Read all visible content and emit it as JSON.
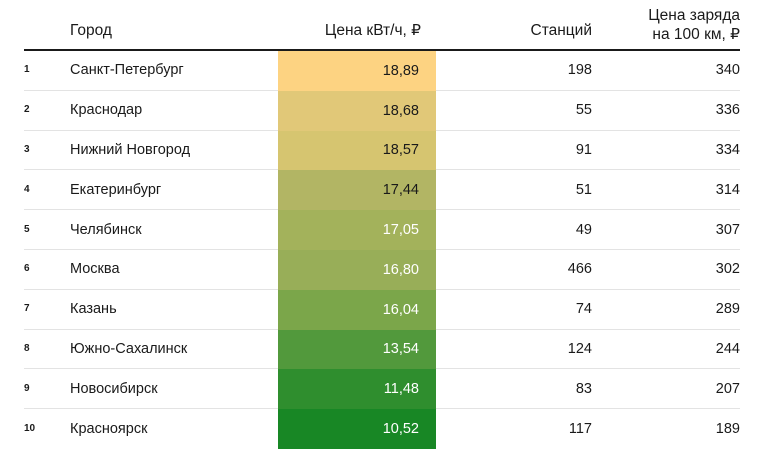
{
  "table": {
    "headers": {
      "city": "Город",
      "price": "Цена кВт/ч, ₽",
      "stations": "Станций",
      "charge_line1": "Цена заряда",
      "charge_line2": "на 100 км, ₽"
    },
    "rows": [
      {
        "rank": "1",
        "city": "Санкт-Петербург",
        "price": "18,89",
        "stations": "198",
        "charge": "340",
        "color": "#fdd382"
      },
      {
        "rank": "2",
        "city": "Краснодар",
        "price": "18,68",
        "stations": "55",
        "charge": "336",
        "color": "#e1c878"
      },
      {
        "rank": "3",
        "city": "Нижний Новгород",
        "price": "18,57",
        "stations": "91",
        "charge": "334",
        "color": "#d6c570"
      },
      {
        "rank": "4",
        "city": "Екатеринбург",
        "price": "17,44",
        "stations": "51",
        "charge": "314",
        "color": "#b2b564"
      },
      {
        "rank": "5",
        "city": "Челябинск",
        "price": "17,05",
        "stations": "49",
        "charge": "307",
        "color": "#a3b25b"
      },
      {
        "rank": "6",
        "city": "Москва",
        "price": "16,80",
        "stations": "466",
        "charge": "302",
        "color": "#98ae58"
      },
      {
        "rank": "7",
        "city": "Казань",
        "price": "16,04",
        "stations": "74",
        "charge": "289",
        "color": "#7ba64a"
      },
      {
        "rank": "8",
        "city": "Южно-Сахалинск",
        "price": "13,54",
        "stations": "124",
        "charge": "244",
        "color": "#52993c"
      },
      {
        "rank": "9",
        "city": "Новосибирск",
        "price": "11,48",
        "stations": "83",
        "charge": "207",
        "color": "#2f8e2e"
      },
      {
        "rank": "10",
        "city": "Красноярск",
        "price": "10,52",
        "stations": "117",
        "charge": "189",
        "color": "#188725"
      }
    ]
  }
}
